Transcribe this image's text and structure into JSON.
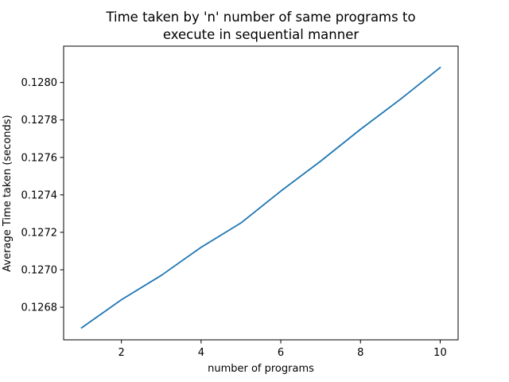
{
  "chart_data": {
    "type": "line",
    "title_lines": [
      "Time taken by 'n' number of same programs to",
      "execute in sequential manner"
    ],
    "xlabel": "number of programs",
    "ylabel": "Average Time taken (seconds)",
    "xlim": [
      0.55,
      10.45
    ],
    "ylim": [
      0.126626,
      0.128194
    ],
    "x_ticks": [
      2,
      4,
      6,
      8,
      10
    ],
    "x_tick_labels": [
      "2",
      "4",
      "6",
      "8",
      "10"
    ],
    "y_ticks": [
      0.1268,
      0.127,
      0.1272,
      0.1274,
      0.1276,
      0.1278,
      0.128
    ],
    "y_tick_labels": [
      "0.1268",
      "0.1270",
      "0.1272",
      "0.1274",
      "0.1276",
      "0.1278",
      "0.1280"
    ],
    "grid": false,
    "legend": false,
    "series": [
      {
        "color": "#1f77b4",
        "x": [
          1,
          2,
          3,
          4,
          5,
          6,
          7,
          8,
          9,
          10
        ],
        "y": [
          0.12669,
          0.12684,
          0.12697,
          0.12712,
          0.12725,
          0.12742,
          0.12758,
          0.12775,
          0.12791,
          0.12808
        ]
      }
    ]
  }
}
